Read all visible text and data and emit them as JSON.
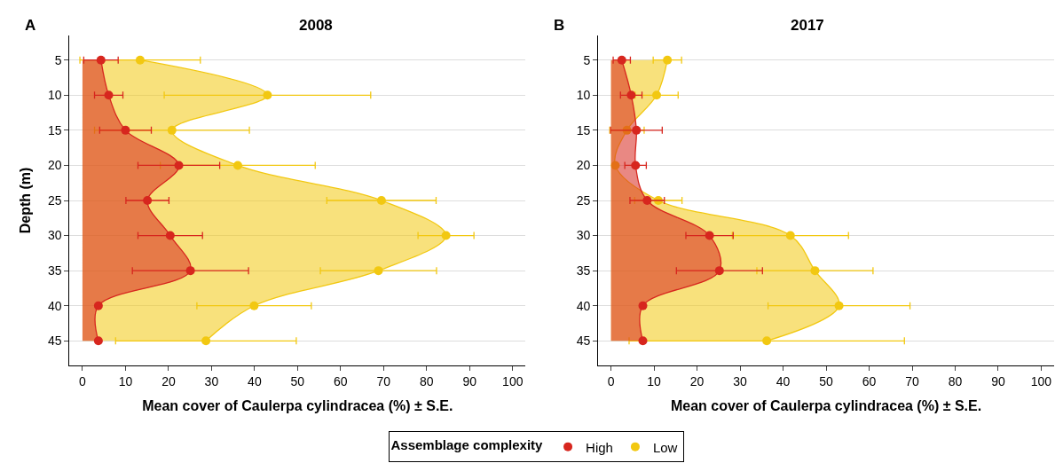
{
  "chart_data": [
    {
      "type": "area",
      "title": "2008",
      "annotations": [
        "A"
      ],
      "orientation": "horizontal",
      "xlabel": "Mean cover of Caulerpa cylindracea (%) ± S.E.",
      "ylabel": "Depth (m)",
      "categories": [
        "5",
        "10",
        "15",
        "20",
        "25",
        "30",
        "35",
        "40",
        "45"
      ],
      "xlim": [
        -3,
        103
      ],
      "xticks": [
        0,
        10,
        20,
        30,
        40,
        50,
        60,
        70,
        80,
        90,
        100
      ],
      "grid": "y",
      "marker": "circle",
      "legend": "bottom",
      "legend_title": "Assemblage complexity",
      "series": [
        {
          "name": "Low",
          "color": "#f2c811",
          "values": [
            13.4,
            43,
            20.8,
            36.1,
            69.5,
            84.5,
            68.8,
            39.9,
            28.7
          ],
          "errors": [
            14,
            24,
            18,
            18,
            12.7,
            6.5,
            13.5,
            13.3,
            21
          ]
        },
        {
          "name": "High",
          "color": "#d7261e",
          "values": [
            4.3,
            6.1,
            10,
            22.4,
            15.1,
            20.4,
            25.1,
            3.7,
            3.7
          ],
          "errors": [
            4,
            3.3,
            6,
            9.5,
            5,
            7.5,
            13.5,
            null,
            null
          ]
        }
      ]
    },
    {
      "type": "area",
      "title": "2017",
      "annotations": [
        "B"
      ],
      "orientation": "horizontal",
      "xlabel": "Mean cover of Caulerpa cylindracea (%) ± S.E.",
      "categories": [
        "5",
        "10",
        "15",
        "20",
        "25",
        "30",
        "35",
        "40",
        "45"
      ],
      "xlim": [
        -3,
        103
      ],
      "xticks": [
        0,
        10,
        20,
        30,
        40,
        50,
        60,
        70,
        80,
        90,
        100
      ],
      "grid": "y",
      "marker": "circle",
      "series": [
        {
          "color": "#f2c811",
          "values": [
            13.1,
            10.6,
            3.7,
            1,
            11,
            41.7,
            47.4,
            53,
            36.2
          ],
          "errors": [
            3.3,
            5,
            4,
            null,
            5.5,
            13.5,
            13.5,
            16.5,
            32
          ]
        },
        {
          "color": "#d7261e",
          "values": [
            2.5,
            4.7,
            5.9,
            5.7,
            8.4,
            22.9,
            25.2,
            7.4,
            7.4
          ],
          "errors": [
            2,
            2.5,
            6,
            2.5,
            4,
            5.5,
            10,
            null,
            null
          ]
        }
      ]
    }
  ]
}
